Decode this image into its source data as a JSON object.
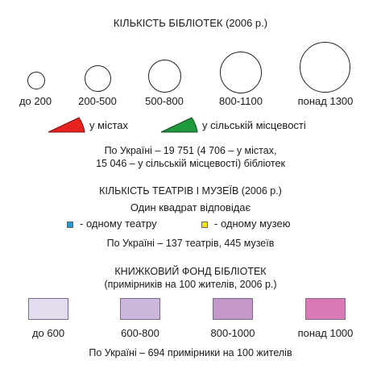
{
  "libraries": {
    "title": "КІЛЬКІСТЬ БІБЛІОТЕК (2006 р.)",
    "size_classes": [
      "до 200",
      "200-500",
      "500-800",
      "800-1100",
      "понад 1300"
    ],
    "urban_label": "у містах",
    "rural_label": "у сільській місцевості",
    "urban_color": "#e8231f",
    "rural_color": "#1e9a3c",
    "note_line1": "По Україні – 19 751 (4 706 – у містах,",
    "note_line2": "15 046 – у сільській місцевості) бібліотек"
  },
  "theatres": {
    "title": "КІЛЬКІСТЬ ТЕАТРІВ І МУЗЕЇВ (2006 р.)",
    "subtitle": "Один квадрат відповідає",
    "theatre_label": "- одному театру",
    "museum_label": "- одному музею",
    "theatre_color": "#1f9ad6",
    "museum_color": "#f2e600",
    "note": "По Україні – 137 театрів, 445 музеїв"
  },
  "book_fund": {
    "title": "КНИЖКОВИЙ ФОНД БІБЛІОТЕК",
    "subtitle": "(примірників на 100 жителів, 2006 р.)",
    "classes": [
      {
        "label": "до 600",
        "color": "#e3dcef"
      },
      {
        "label": "600-800",
        "color": "#cdb7dd"
      },
      {
        "label": "800-1000",
        "color": "#c497c9"
      },
      {
        "label": "понад 1000",
        "color": "#d97ab6"
      }
    ],
    "note": "По Україні – 694 примірники на 100 жителів"
  }
}
